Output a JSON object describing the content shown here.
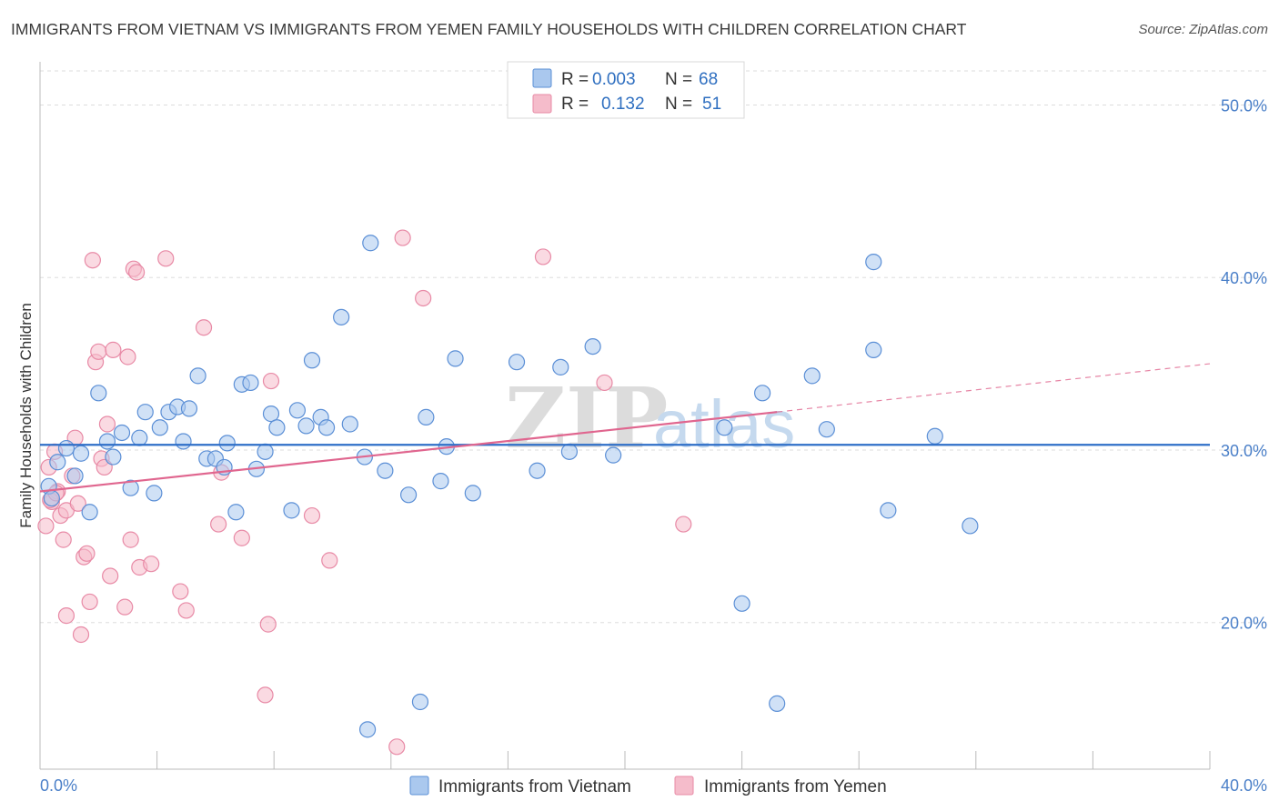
{
  "title": "IMMIGRANTS FROM VIETNAM VS IMMIGRANTS FROM YEMEN FAMILY HOUSEHOLDS WITH CHILDREN CORRELATION CHART",
  "source": "Source: ZipAtlas.com",
  "watermark": {
    "zip": "ZIP",
    "atlas": "atlas"
  },
  "colors": {
    "vietnam_fill": "#aac8ee",
    "vietnam_stroke": "#5b8fd6",
    "vietnam_line": "#2f6fc8",
    "yemen_fill": "#f5bccb",
    "yemen_stroke": "#e88aa6",
    "yemen_line": "#e0668f",
    "grid": "#dddddd",
    "tick_text": "#4a7fc8"
  },
  "legend": {
    "rows": [
      {
        "r_label": "R =",
        "r_value": "0.003",
        "n_label": "N =",
        "n_value": "68"
      },
      {
        "r_label": "R =",
        "r_value": "0.132",
        "n_label": "N =",
        "n_value": "51"
      }
    ]
  },
  "chart_data": {
    "type": "scatter",
    "title": "IMMIGRANTS FROM VIETNAM VS IMMIGRANTS FROM YEMEN FAMILY HOUSEHOLDS WITH CHILDREN CORRELATION CHART",
    "xlabel": "",
    "ylabel": "Family Households with Children",
    "xlim": [
      0,
      40
    ],
    "ylim": [
      11.5,
      52.5
    ],
    "x_tick_labels": [
      "0.0%",
      "40.0%"
    ],
    "y_ticks": [
      20,
      30,
      40,
      50
    ],
    "y_tick_labels": [
      "20.0%",
      "30.0%",
      "40.0%",
      "50.0%"
    ],
    "grid": true,
    "legend_position": "top-center",
    "series": [
      {
        "name": "Immigrants from Vietnam",
        "R": 0.003,
        "N": 68,
        "trend": {
          "x": [
            0,
            40
          ],
          "y": [
            30.3,
            30.3
          ]
        },
        "points": [
          [
            0.3,
            27.9
          ],
          [
            0.4,
            27.2
          ],
          [
            0.6,
            29.3
          ],
          [
            0.9,
            30.1
          ],
          [
            1.2,
            28.5
          ],
          [
            1.4,
            29.8
          ],
          [
            1.7,
            26.4
          ],
          [
            2.0,
            33.3
          ],
          [
            2.3,
            30.5
          ],
          [
            2.5,
            29.6
          ],
          [
            2.8,
            31.0
          ],
          [
            3.1,
            27.8
          ],
          [
            3.4,
            30.7
          ],
          [
            3.6,
            32.2
          ],
          [
            3.9,
            27.5
          ],
          [
            4.1,
            31.3
          ],
          [
            4.4,
            32.2
          ],
          [
            4.7,
            32.5
          ],
          [
            4.9,
            30.5
          ],
          [
            5.1,
            32.4
          ],
          [
            5.4,
            34.3
          ],
          [
            5.7,
            29.5
          ],
          [
            6.0,
            29.5
          ],
          [
            6.3,
            29.0
          ],
          [
            6.4,
            30.4
          ],
          [
            6.7,
            26.4
          ],
          [
            6.9,
            33.8
          ],
          [
            7.2,
            33.9
          ],
          [
            7.4,
            28.9
          ],
          [
            7.7,
            29.9
          ],
          [
            7.9,
            32.1
          ],
          [
            8.1,
            31.3
          ],
          [
            8.6,
            26.5
          ],
          [
            8.8,
            32.3
          ],
          [
            9.1,
            31.4
          ],
          [
            9.3,
            35.2
          ],
          [
            9.6,
            31.9
          ],
          [
            9.8,
            31.3
          ],
          [
            10.3,
            37.7
          ],
          [
            10.6,
            31.5
          ],
          [
            11.1,
            29.6
          ],
          [
            11.3,
            42.0
          ],
          [
            11.8,
            28.8
          ],
          [
            12.6,
            27.4
          ],
          [
            13.2,
            31.9
          ],
          [
            13.7,
            28.2
          ],
          [
            13.9,
            30.2
          ],
          [
            14.2,
            35.3
          ],
          [
            14.8,
            27.5
          ],
          [
            16.3,
            35.1
          ],
          [
            17.0,
            28.8
          ],
          [
            17.8,
            34.8
          ],
          [
            18.1,
            29.9
          ],
          [
            18.9,
            36.0
          ],
          [
            19.6,
            29.7
          ],
          [
            23.4,
            31.3
          ],
          [
            24.0,
            21.1
          ],
          [
            24.7,
            33.3
          ],
          [
            25.2,
            15.3
          ],
          [
            26.4,
            34.3
          ],
          [
            26.9,
            31.2
          ],
          [
            28.5,
            35.8
          ],
          [
            28.5,
            40.9
          ],
          [
            29.0,
            26.5
          ],
          [
            30.6,
            30.8
          ],
          [
            31.8,
            25.6
          ],
          [
            13.0,
            15.4
          ],
          [
            11.2,
            13.8
          ]
        ]
      },
      {
        "name": "Immigrants from Yemen",
        "R": 0.132,
        "N": 51,
        "trend": {
          "x": [
            0,
            25.2
          ],
          "y": [
            27.6,
            32.2
          ]
        },
        "trend_dashed": {
          "x": [
            25.2,
            40
          ],
          "y": [
            32.2,
            35.0
          ]
        },
        "points": [
          [
            0.2,
            25.6
          ],
          [
            0.3,
            29.0
          ],
          [
            0.4,
            27.0
          ],
          [
            0.5,
            29.9
          ],
          [
            0.6,
            27.6
          ],
          [
            0.7,
            26.2
          ],
          [
            0.8,
            24.8
          ],
          [
            0.9,
            26.5
          ],
          [
            0.9,
            20.4
          ],
          [
            1.1,
            28.5
          ],
          [
            1.2,
            30.7
          ],
          [
            1.3,
            26.9
          ],
          [
            1.4,
            19.3
          ],
          [
            1.5,
            23.8
          ],
          [
            1.6,
            24.0
          ],
          [
            1.7,
            21.2
          ],
          [
            1.8,
            41.0
          ],
          [
            1.9,
            35.1
          ],
          [
            2.0,
            35.7
          ],
          [
            2.1,
            29.5
          ],
          [
            2.2,
            29.0
          ],
          [
            2.3,
            31.5
          ],
          [
            2.4,
            22.7
          ],
          [
            2.5,
            35.8
          ],
          [
            2.9,
            20.9
          ],
          [
            3.0,
            35.4
          ],
          [
            3.1,
            24.8
          ],
          [
            3.2,
            40.5
          ],
          [
            3.3,
            40.3
          ],
          [
            3.4,
            23.2
          ],
          [
            3.8,
            23.4
          ],
          [
            4.3,
            41.1
          ],
          [
            4.8,
            21.8
          ],
          [
            5.0,
            20.7
          ],
          [
            5.6,
            37.1
          ],
          [
            6.1,
            25.7
          ],
          [
            6.2,
            28.7
          ],
          [
            6.9,
            24.9
          ],
          [
            7.7,
            15.8
          ],
          [
            7.8,
            19.9
          ],
          [
            7.9,
            34.0
          ],
          [
            9.3,
            26.2
          ],
          [
            9.9,
            23.6
          ],
          [
            12.2,
            12.8
          ],
          [
            12.4,
            42.3
          ],
          [
            13.1,
            38.8
          ],
          [
            17.2,
            41.2
          ],
          [
            19.3,
            33.9
          ],
          [
            22.0,
            25.7
          ],
          [
            0.35,
            27.1
          ],
          [
            0.55,
            27.5
          ]
        ]
      }
    ]
  },
  "bottom_legend": {
    "items": [
      {
        "label": "Immigrants from Vietnam"
      },
      {
        "label": "Immigrants from Yemen"
      }
    ]
  }
}
